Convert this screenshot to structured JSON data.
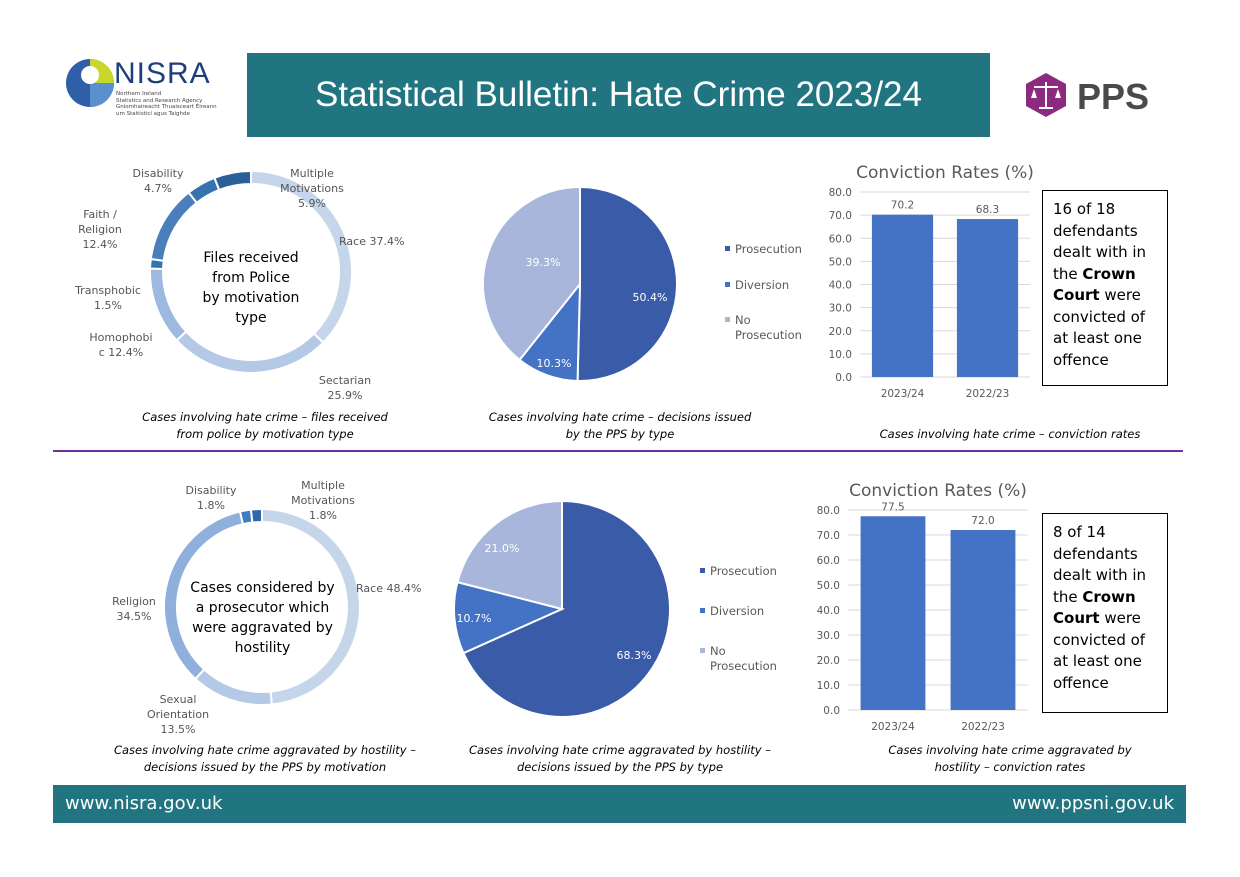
{
  "header": {
    "title": "Statistical Bulletin: Hate Crime 2023/24",
    "nisra_name": "NISRA",
    "nisra_sub1": "Northern Ireland",
    "nisra_sub2": "Statistics and Research Agency",
    "nisra_sub3": "Gníomhaireacht Thuaisceart Éireann",
    "nisra_sub4": "um Staitisticí agus Taighde",
    "pps_name": "PPS"
  },
  "footer": {
    "left": "www.nisra.gov.uk",
    "right": "www.ppsni.gov.uk"
  },
  "colors": {
    "teal": "#217581",
    "purple": "#7030a0",
    "bar": "#4472c4",
    "prosecution": "#3a5ba8",
    "diversion": "#4472c4",
    "no_prosecution": "#a8b6dc"
  },
  "top": {
    "donut_center": [
      "Files received",
      "from Police",
      "by motivation",
      "type"
    ],
    "donut_labels": [
      [
        "Race 37.4%"
      ],
      [
        "Sectarian",
        "25.9%"
      ],
      [
        "Homophobi",
        "c 12.4%"
      ],
      [
        "Transphobic",
        "1.5%"
      ],
      [
        "Faith /",
        "Religion",
        "12.4%"
      ],
      [
        "Disability",
        "4.7%"
      ],
      [
        "Multiple",
        "Motivations",
        "5.9%"
      ]
    ],
    "captions": {
      "donut": [
        "Cases involving hate crime – files received",
        "from police by motivation type"
      ],
      "pie": [
        "Cases involving hate crime – decisions issued",
        "by the PPS by type"
      ],
      "bar": [
        "Cases involving hate crime – conviction rates"
      ]
    },
    "box": {
      "pre": "16 of 18 defendants dealt with in the ",
      "bold": "Crown Court",
      "post": " were convicted of at least one offence"
    }
  },
  "bottom": {
    "donut_center": [
      "Cases considered by",
      "a prosecutor which",
      "were aggravated by",
      "hostility"
    ],
    "donut_labels": [
      [
        "Race 48.4%"
      ],
      [
        "Sexual",
        "Orientation",
        "13.5%"
      ],
      [
        "Religion",
        "34.5%"
      ],
      [
        "Disability",
        "1.8%"
      ],
      [
        "Multiple",
        "Motivations",
        "1.8%"
      ]
    ],
    "captions": {
      "donut": [
        "Cases involving hate crime aggravated by hostility –",
        "decisions issued by the PPS by motivation"
      ],
      "pie": [
        "Cases involving hate crime aggravated by hostility –",
        "decisions issued by the PPS by type"
      ],
      "bar": [
        "Cases involving hate crime aggravated by",
        "hostility – conviction rates"
      ]
    },
    "box": {
      "pre": "8 of 14 defendants dealt with in the ",
      "bold": "Crown Court",
      "post": " were convicted of at least one offence"
    }
  },
  "chart_data": [
    {
      "type": "pie",
      "variant": "donut",
      "series": [
        {
          "values": [
            {
              "label": "Race",
              "value": 37.4
            },
            {
              "label": "Sectarian",
              "value": 25.9
            },
            {
              "label": "Homophobic",
              "value": 12.4
            },
            {
              "label": "Transphobic",
              "value": 1.5
            },
            {
              "label": "Faith / Religion",
              "value": 12.4
            },
            {
              "label": "Disability",
              "value": 4.7
            },
            {
              "label": "Multiple Motivations",
              "value": 5.9
            }
          ]
        }
      ],
      "colors": [
        "#c5d5ea",
        "#b3c9e6",
        "#9db9e0",
        "#2e75b6",
        "#4a7fbc",
        "#3572ae",
        "#29609a"
      ]
    },
    {
      "type": "pie",
      "categories": [
        "Prosecution",
        "Diversion",
        "No Prosecution"
      ],
      "values": [
        50.4,
        10.3,
        39.3
      ],
      "legend": "right"
    },
    {
      "type": "bar",
      "title": "Conviction Rates (%)",
      "categories": [
        "2023/24",
        "2022/23"
      ],
      "values": [
        70.2,
        68.3
      ],
      "ylim": [
        0,
        80
      ],
      "yticks": [
        "0.0",
        "10.0",
        "20.0",
        "30.0",
        "40.0",
        "50.0",
        "60.0",
        "70.0",
        "80.0"
      ],
      "value_labels": [
        "70.2",
        "68.3"
      ]
    },
    {
      "type": "pie",
      "variant": "donut",
      "series": [
        {
          "values": [
            {
              "label": "Race",
              "value": 48.4
            },
            {
              "label": "Sexual Orientation",
              "value": 13.5
            },
            {
              "label": "Religion",
              "value": 34.5
            },
            {
              "label": "Disability",
              "value": 1.8
            },
            {
              "label": "Multiple Motivations",
              "value": 1.8
            }
          ]
        }
      ],
      "colors": [
        "#c5d5ea",
        "#b3c9e6",
        "#8fb0dc",
        "#3f7cc0",
        "#2e6aaa"
      ]
    },
    {
      "type": "pie",
      "categories": [
        "Prosecution",
        "Diversion",
        "No Prosecution"
      ],
      "values": [
        68.3,
        10.7,
        21.0
      ],
      "legend": "right"
    },
    {
      "type": "bar",
      "title": "Conviction Rates (%)",
      "categories": [
        "2023/24",
        "2022/23"
      ],
      "values": [
        77.5,
        72.0
      ],
      "ylim": [
        0,
        80
      ],
      "yticks": [
        "0.0",
        "10.0",
        "20.0",
        "30.0",
        "40.0",
        "50.0",
        "60.0",
        "70.0",
        "80.0"
      ],
      "value_labels": [
        "77.5",
        "72.0"
      ]
    }
  ],
  "pie_labels": [
    [
      "50.4%",
      "10.3%",
      "39.3%"
    ],
    [
      "68.3%",
      "10.7%",
      "21.0%"
    ]
  ],
  "legend_labels": [
    [
      "Prosecution",
      "Diversion",
      "No",
      "Prosecution"
    ],
    [
      "Prosecution",
      "Diversion",
      "No",
      "Prosecution"
    ]
  ]
}
